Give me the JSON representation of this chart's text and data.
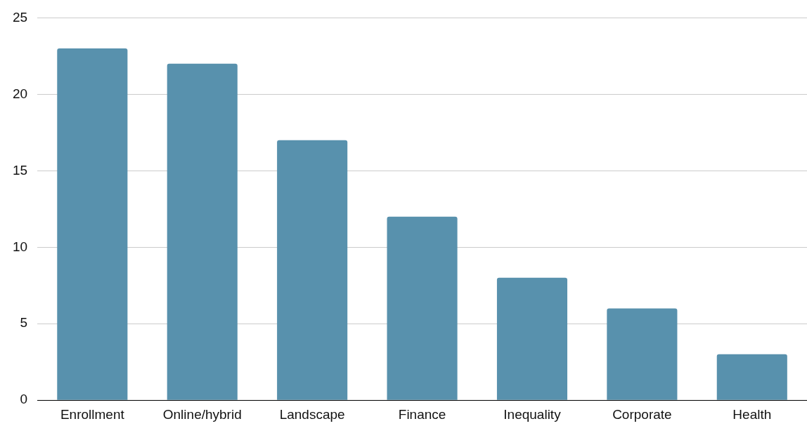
{
  "chart_data": {
    "type": "bar",
    "categories": [
      "Enrollment",
      "Online/hybrid",
      "Landscape",
      "Finance",
      "Inequality",
      "Corporate",
      "Health"
    ],
    "values": [
      23,
      22,
      17,
      12,
      8,
      6,
      3
    ],
    "color": "#5891ad",
    "ylim": [
      0,
      25
    ],
    "yticks": [
      0,
      5,
      10,
      15,
      20,
      25
    ],
    "grid": "y"
  }
}
